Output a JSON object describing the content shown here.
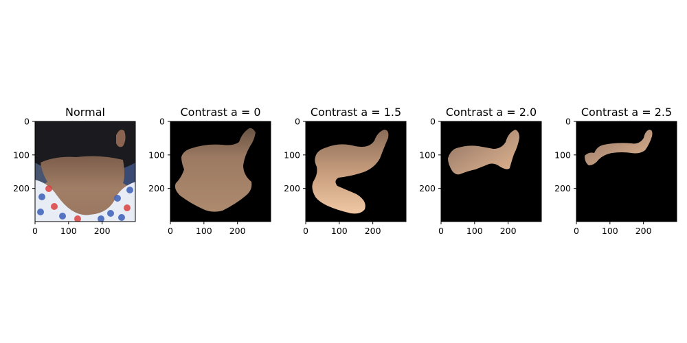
{
  "chart_data": [
    {
      "type": "image",
      "title": "Normal",
      "xlim": [
        0,
        299
      ],
      "ylim": [
        299,
        0
      ],
      "xticks": [
        0,
        100,
        200
      ],
      "yticks": [
        0,
        100,
        200
      ],
      "content": "photo",
      "colors": {
        "skin": "#a17e66",
        "hair": "#1a1a1f",
        "background": "#3f4f73",
        "shirt": "#e8ecf5",
        "pattern_blue": "#3a5fb8",
        "pattern_red": "#d9413e"
      }
    },
    {
      "type": "image",
      "title": "Contrast a = 0",
      "xlim": [
        0,
        299
      ],
      "ylim": [
        299,
        0
      ],
      "xticks": [
        0,
        100,
        200
      ],
      "yticks": [
        0,
        100,
        200
      ],
      "content": "mask-large",
      "colors": {
        "skin": "#a88468",
        "background": "#000000"
      }
    },
    {
      "type": "image",
      "title": "Contrast a = 1.5",
      "xlim": [
        0,
        299
      ],
      "ylim": [
        299,
        0
      ],
      "xticks": [
        0,
        100,
        200
      ],
      "yticks": [
        0,
        100,
        200
      ],
      "content": "mask-medium",
      "colors": {
        "skin": "#c69c7c",
        "highlight": "#f0c8a4",
        "background": "#000000"
      }
    },
    {
      "type": "image",
      "title": "Contrast a = 2.0",
      "xlim": [
        0,
        299
      ],
      "ylim": [
        299,
        0
      ],
      "xticks": [
        0,
        100,
        200
      ],
      "yticks": [
        0,
        100,
        200
      ],
      "content": "mask-small",
      "colors": {
        "skin": "#b28e74",
        "background": "#000000"
      }
    },
    {
      "type": "image",
      "title": "Contrast a = 2.5",
      "xlim": [
        0,
        299
      ],
      "ylim": [
        299,
        0
      ],
      "xticks": [
        0,
        100,
        200
      ],
      "yticks": [
        0,
        100,
        200
      ],
      "content": "mask-thin",
      "colors": {
        "skin": "#b08c72",
        "background": "#000000"
      }
    }
  ]
}
